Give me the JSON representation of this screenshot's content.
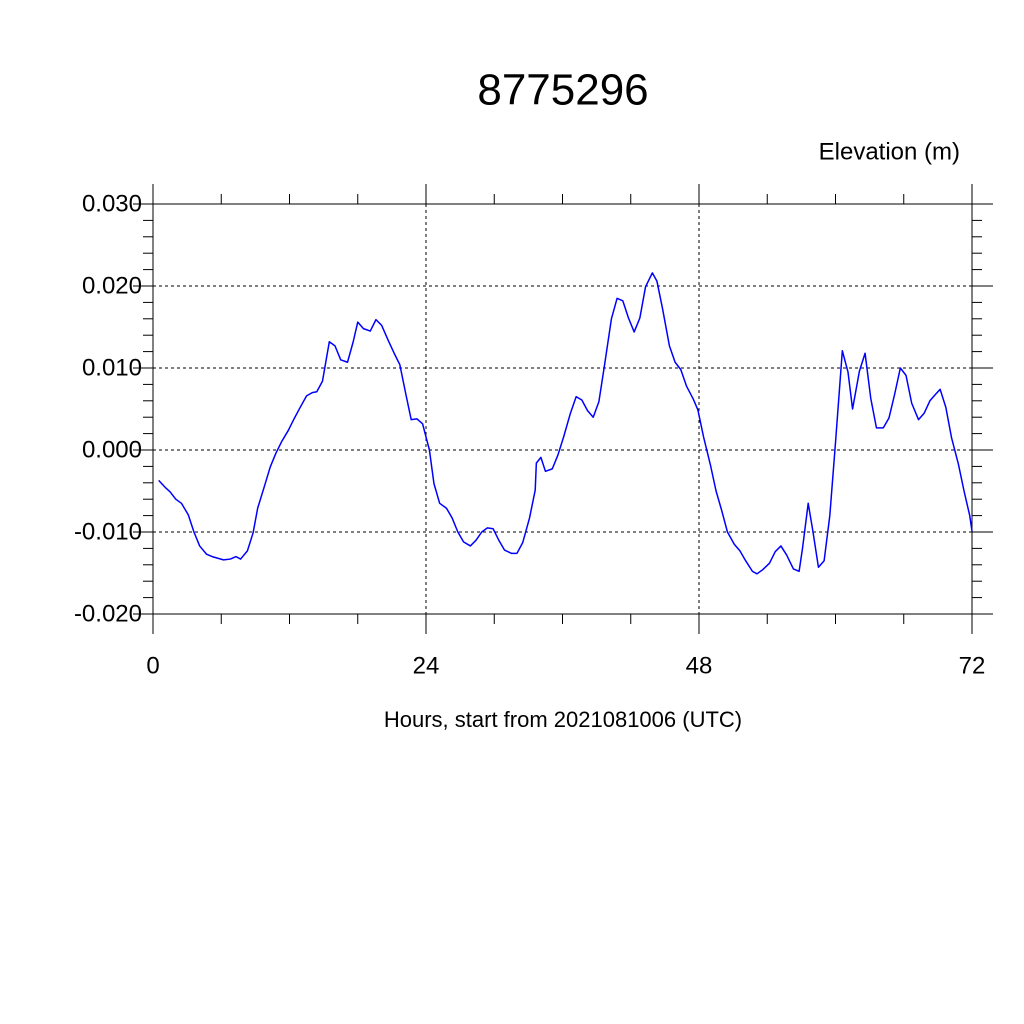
{
  "chart_data": {
    "type": "line",
    "title": "8775296",
    "subtitle": "Elevation (m)",
    "x_label": "Hours, start from 2021081006 (UTC)",
    "xlim": [
      0,
      72
    ],
    "xticks": [
      0,
      24,
      48,
      72
    ],
    "x_minor_ticks": [
      6,
      12,
      18,
      30,
      36,
      42,
      54,
      60,
      66
    ],
    "ylim": [
      -0.02,
      0.03
    ],
    "yticks": [
      {
        "value": 0.03,
        "label": "0.030"
      },
      {
        "value": 0.02,
        "label": "0.020"
      },
      {
        "value": 0.01,
        "label": "0.010"
      },
      {
        "value": 0,
        "label": "0.000"
      },
      {
        "value": -0.01,
        "label": "-0.010"
      },
      {
        "value": -0.02,
        "label": "-0.020"
      }
    ],
    "y_minor_ticks": [
      0.028,
      0.026,
      0.024,
      0.022,
      0.018,
      0.016,
      0.014,
      0.012,
      0.008,
      0.006,
      0.004,
      0.002,
      -0.002,
      -0.004,
      -0.006,
      -0.008,
      -0.012,
      -0.014,
      -0.016,
      -0.018
    ],
    "grid": true,
    "x": [
      0.5,
      1.1,
      1.5,
      2.0,
      2.5,
      3.1,
      3.6,
      4.1,
      4.7,
      5.2,
      5.7,
      6.2,
      6.8,
      7.3,
      7.7,
      8.3,
      8.8,
      9.2,
      9.8,
      10.3,
      10.8,
      11.3,
      11.9,
      12.4,
      12.9,
      13.5,
      14.0,
      14.4,
      14.9,
      15.5,
      16.0,
      16.5,
      17.1,
      17.6,
      18.0,
      18.5,
      19.1,
      19.6,
      20.1,
      20.7,
      21.2,
      21.7,
      22.2,
      22.7,
      23.2,
      23.7,
      24.3,
      24.7,
      25.2,
      25.8,
      26.3,
      26.8,
      27.3,
      27.9,
      28.4,
      28.9,
      29.4,
      29.9,
      30.4,
      30.9,
      31.5,
      32.0,
      32.5,
      33.1,
      33.6,
      33.7,
      34.1,
      34.5,
      35.1,
      35.6,
      36.1,
      36.7,
      37.2,
      37.7,
      38.2,
      38.7,
      39.2,
      39.7,
      40.3,
      40.8,
      41.3,
      41.8,
      42.3,
      42.8,
      43.3,
      43.9,
      44.3,
      44.8,
      45.4,
      45.9,
      46.4,
      46.9,
      47.5,
      47.9,
      48.4,
      49.0,
      49.5,
      50.0,
      50.5,
      51.1,
      51.6,
      52.1,
      52.7,
      53.1,
      53.6,
      54.2,
      54.7,
      55.2,
      55.7,
      56.3,
      56.8,
      57.1,
      57.6,
      58.0,
      58.5,
      59.0,
      59.5,
      60.0,
      60.6,
      61.1,
      61.5,
      62.1,
      62.6,
      63.1,
      63.6,
      64.2,
      64.7,
      65.2,
      65.7,
      66.2,
      66.7,
      67.3,
      67.8,
      68.3,
      68.8,
      69.2,
      69.7,
      70.2,
      70.8,
      71.3,
      71.8,
      72.0
    ],
    "series": [
      {
        "name": "Elevation",
        "color": "#0000ff",
        "values": [
          -0.0037,
          -0.0046,
          -0.0051,
          -0.006,
          -0.0065,
          -0.0079,
          -0.01,
          -0.0117,
          -0.0127,
          -0.013,
          -0.0132,
          -0.0134,
          -0.0133,
          -0.013,
          -0.0133,
          -0.0123,
          -0.0101,
          -0.0071,
          -0.0044,
          -0.0021,
          -0.0004,
          0.001,
          0.0024,
          0.0038,
          0.0051,
          0.0066,
          0.007,
          0.0071,
          0.0084,
          0.0132,
          0.0127,
          0.011,
          0.0107,
          0.0132,
          0.0156,
          0.0148,
          0.0145,
          0.0159,
          0.0152,
          0.0133,
          0.0118,
          0.0104,
          0.007,
          0.0037,
          0.0038,
          0.0032,
          0,
          -0.0041,
          -0.0065,
          -0.0071,
          -0.0083,
          -0.01,
          -0.0112,
          -0.0117,
          -0.011,
          -0.01,
          -0.0095,
          -0.0096,
          -0.011,
          -0.0122,
          -0.0126,
          -0.0126,
          -0.0113,
          -0.0083,
          -0.0049,
          -0.0016,
          -0.0009,
          -0.0026,
          -0.0023,
          -0.0006,
          0.0016,
          0.0045,
          0.0065,
          0.0061,
          0.0048,
          0.004,
          0.0059,
          0.0104,
          0.016,
          0.0185,
          0.0182,
          0.0161,
          0.0144,
          0.0161,
          0.0199,
          0.0216,
          0.0206,
          0.0172,
          0.0127,
          0.0107,
          0.0098,
          0.0078,
          0.0062,
          0.0049,
          0.0016,
          -0.0018,
          -0.005,
          -0.0074,
          -0.01,
          -0.0115,
          -0.0123,
          -0.0135,
          -0.0148,
          -0.0151,
          -0.0146,
          -0.0138,
          -0.0124,
          -0.0117,
          -0.0128,
          -0.0145,
          -0.0148,
          -0.012,
          -0.0065,
          -0.0098,
          -0.0143,
          -0.0135,
          -0.008,
          0.0009,
          0.0121,
          0.0095,
          0.005,
          0.0096,
          0.0118,
          0.0063,
          0.0027,
          0.0027,
          0.0039,
          0.0068,
          0.01,
          0.0091,
          0.0057,
          0.0037,
          0.0045,
          0.006,
          0.0068,
          0.0074,
          0.0052,
          0.0015,
          -0.0017,
          -0.005,
          -0.008,
          -0.0099
        ]
      }
    ]
  }
}
